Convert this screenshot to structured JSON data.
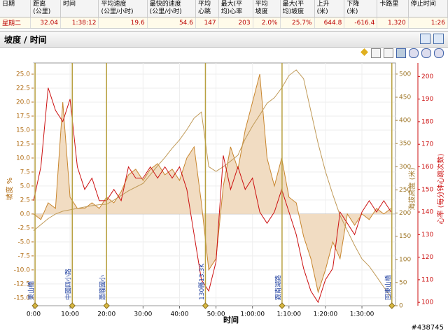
{
  "table": {
    "headers": [
      [
        "日期"
      ],
      [
        "距离",
        "(公里)"
      ],
      [
        "时间"
      ],
      [
        "平均速度",
        "(公里/小时)"
      ],
      [
        "最快的速度",
        "(公里/小时)"
      ],
      [
        "平均",
        "心跳"
      ],
      [
        "最大(平",
        "均)心率"
      ],
      [
        "平均",
        "坡度"
      ],
      [
        "最大(平",
        "均)坡度"
      ],
      [
        "上升",
        "(米)"
      ],
      [
        "下降",
        "(米)"
      ],
      [
        "卡路里"
      ],
      [
        "停止时间"
      ]
    ],
    "rows": [
      [
        "星期二",
        "32.04",
        "1:38:12",
        "19.6",
        "54.6",
        "147",
        "203",
        "2.0%",
        "25.7%",
        "644.8",
        "-616.4",
        "1,320",
        "1:26"
      ]
    ]
  },
  "panel_title": "坡度 / 时间",
  "watermark": "#438745",
  "chart_data": {
    "type": "line",
    "x_label": "时间",
    "y_label": "坡度 %",
    "y2_label": "海拔高度 (米)",
    "y3_label": "心率 (每分钟心跳次数)",
    "xlim": [
      0,
      99.2
    ],
    "xticks": [
      {
        "value": 0,
        "label": "0:00"
      },
      {
        "value": 10,
        "label": "10:00"
      },
      {
        "value": 20,
        "label": "20:00"
      },
      {
        "value": 30,
        "label": "30:00"
      },
      {
        "value": 40,
        "label": "40:00"
      },
      {
        "value": 50,
        "label": "50:00"
      },
      {
        "value": 60,
        "label": "1:00:00"
      },
      {
        "value": 70,
        "label": "1:10:00"
      },
      {
        "value": 80,
        "label": "1:20:00"
      },
      {
        "value": 90,
        "label": "1:30:00"
      }
    ],
    "ylim": [
      -16.4,
      27
    ],
    "yticks": [
      {
        "value": -15,
        "label": "-15.0"
      },
      {
        "value": -12.5,
        "label": "-12.5"
      },
      {
        "value": -10,
        "label": "-10.0"
      },
      {
        "value": -7.5,
        "label": "-7.5"
      },
      {
        "value": -5,
        "label": "-5.0"
      },
      {
        "value": -2.5,
        "label": "-2.5"
      },
      {
        "value": 0,
        "label": "0.0"
      },
      {
        "value": 2.5,
        "label": "2.5"
      },
      {
        "value": 5,
        "label": "5.0"
      },
      {
        "value": 7.5,
        "label": "7.5"
      },
      {
        "value": 10,
        "label": "10.0"
      },
      {
        "value": 12.5,
        "label": "12.5"
      },
      {
        "value": 15,
        "label": "15.0"
      },
      {
        "value": 17.5,
        "label": "17.5"
      },
      {
        "value": 20,
        "label": "20.0"
      },
      {
        "value": 22.5,
        "label": "22.5"
      },
      {
        "value": 25,
        "label": "25.0"
      }
    ],
    "y2lim": [
      0,
      524
    ],
    "y2ticks": [
      0,
      50,
      100,
      150,
      200,
      250,
      300,
      350,
      400,
      450,
      500
    ],
    "y3lim": [
      98.5,
      206
    ],
    "y3ticks": [
      100,
      110,
      120,
      130,
      140,
      150,
      160,
      170,
      180,
      190,
      200
    ],
    "grid": true,
    "x": [
      0,
      2,
      4,
      6,
      8,
      10,
      12,
      14,
      16,
      18,
      20,
      22,
      24,
      26,
      28,
      30,
      32,
      34,
      36,
      38,
      40,
      42,
      44,
      46,
      48,
      50,
      52,
      54,
      56,
      58,
      60,
      62,
      64,
      66,
      68,
      70,
      72,
      74,
      76,
      78,
      80,
      82,
      84,
      86,
      88,
      90,
      92,
      94,
      96,
      98
    ],
    "series": [
      {
        "axis": "y",
        "color": "#c8862e",
        "fill": "#f1dcc2",
        "values": [
          0,
          -1,
          2,
          1,
          20,
          3,
          1,
          1,
          2,
          1,
          3,
          2,
          4,
          7,
          8,
          6,
          8,
          9,
          7,
          8,
          6,
          10,
          12,
          2,
          -10,
          -8,
          5,
          12,
          8,
          15,
          20,
          25,
          10,
          5,
          10,
          3,
          2,
          -4,
          -8,
          -14,
          -10,
          -5,
          -8,
          0,
          -2,
          0,
          -1,
          1,
          0,
          1
        ]
      },
      {
        "axis": "y2",
        "color": "#c09a58",
        "values": [
          162,
          175,
          188,
          198,
          204,
          207,
          210,
          213,
          216,
          218,
          219,
          228,
          238,
          248,
          256,
          264,
          283,
          302,
          320,
          340,
          358,
          380,
          405,
          418,
          300,
          290,
          300,
          312,
          325,
          360,
          388,
          412,
          437,
          449,
          470,
          497,
          509,
          490,
          420,
          350,
          290,
          240,
          195,
          162,
          130,
          101,
          85,
          63,
          40,
          18
        ]
      },
      {
        "axis": "y3",
        "color": "#cc1111",
        "values": [
          145,
          160,
          195,
          185,
          180,
          190,
          160,
          150,
          155,
          145,
          145,
          150,
          145,
          160,
          155,
          155,
          160,
          155,
          160,
          155,
          160,
          150,
          130,
          110,
          105,
          118,
          165,
          150,
          160,
          150,
          155,
          140,
          135,
          140,
          150,
          140,
          130,
          115,
          105,
          100,
          110,
          115,
          140,
          135,
          130,
          140,
          145,
          140,
          145,
          140
        ]
      }
    ],
    "markers": [
      {
        "x": 0.4,
        "label": "東山橋"
      },
      {
        "x": 10.6,
        "label": "中國四小路"
      },
      {
        "x": 20,
        "label": "蕭隴國小"
      },
      {
        "x": 47.1,
        "label": "130縣13.3K"
      },
      {
        "x": 68.1,
        "label": "跟南湖路"
      },
      {
        "x": 98.2,
        "label": "回東山橋"
      }
    ]
  }
}
